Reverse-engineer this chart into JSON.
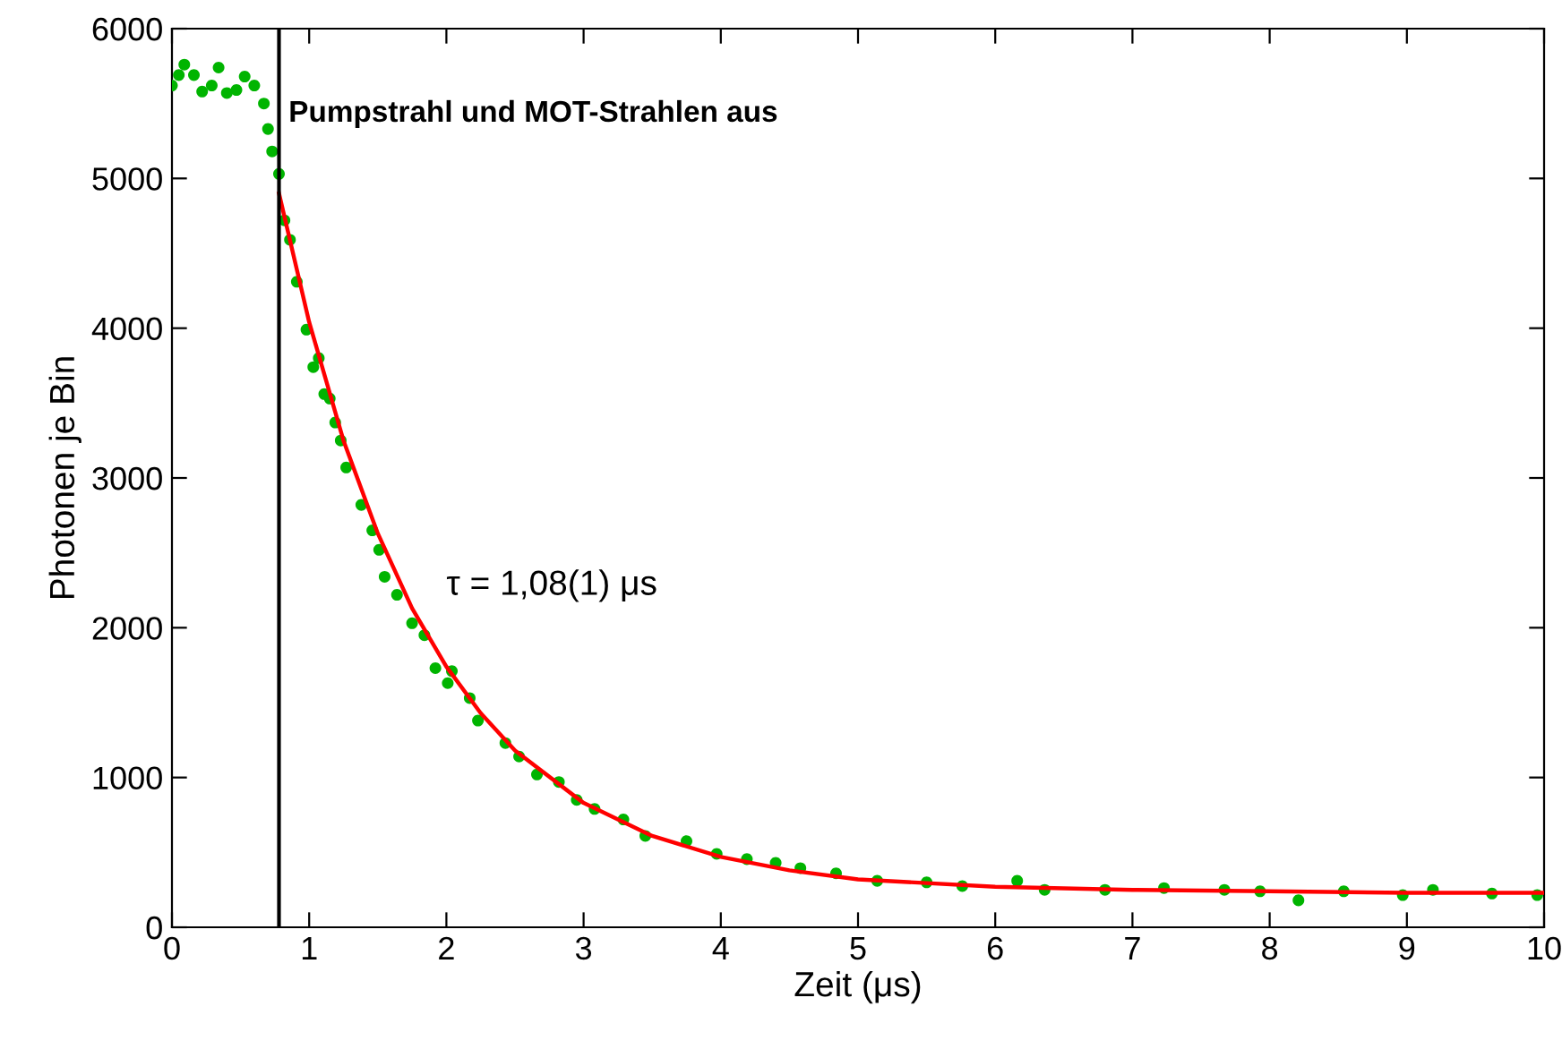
{
  "chart_data": {
    "type": "scatter",
    "xlabel": "Zeit (μs)",
    "ylabel": "Photonen je Bin",
    "xlim": [
      0,
      10
    ],
    "ylim": [
      0,
      6000
    ],
    "xticks": [
      0,
      1,
      2,
      3,
      4,
      5,
      6,
      7,
      8,
      9,
      10
    ],
    "yticks": [
      0,
      1000,
      2000,
      3000,
      4000,
      5000,
      6000
    ],
    "grid": false,
    "legend": false,
    "annotations": [
      "Pumpstrahl und MOT-Strahlen aus",
      "τ = 1,08(1) μs"
    ],
    "ref_lines": [
      {
        "axis": "x",
        "value": 0.78,
        "color": "#000000"
      }
    ],
    "series": [
      {
        "color": "#00b400",
        "marker": "circle",
        "x": [
          0,
          0.05,
          0.09,
          0.16,
          0.22,
          0.29,
          0.34,
          0.4,
          0.47,
          0.53,
          0.6,
          0.67,
          0.7,
          0.73,
          0.78,
          0.82,
          0.86,
          0.91,
          0.98,
          1.03,
          1.07,
          1.11,
          1.15,
          1.19,
          1.23,
          1.27,
          1.38,
          1.46,
          1.51,
          1.55,
          1.64,
          1.75,
          1.84,
          1.92,
          2.01,
          2.04,
          2.17,
          2.23,
          2.43,
          2.53,
          2.66,
          2.82,
          2.95,
          3.08,
          3.29,
          3.45,
          3.75,
          3.97,
          4.19,
          4.4,
          4.58,
          4.84,
          5.14,
          5.5,
          5.76,
          6.16,
          6.36,
          6.8,
          7.23,
          7.67,
          7.93,
          8.21,
          8.54,
          8.97,
          9.19,
          9.62,
          9.95
        ],
        "values": [
          5620,
          5690,
          5760,
          5690,
          5580,
          5620,
          5740,
          5570,
          5590,
          5680,
          5620,
          5500,
          5330,
          5180,
          5030,
          4720,
          4590,
          4310,
          3990,
          3740,
          3800,
          3560,
          3530,
          3370,
          3250,
          3070,
          2820,
          2650,
          2520,
          2340,
          2220,
          2030,
          1950,
          1730,
          1630,
          1710,
          1530,
          1380,
          1230,
          1140,
          1020,
          970,
          850,
          790,
          720,
          610,
          575,
          490,
          455,
          430,
          395,
          360,
          310,
          300,
          275,
          310,
          250,
          250,
          262,
          250,
          240,
          180,
          240,
          215,
          250,
          225,
          215
        ]
      },
      {
        "type": "line",
        "color": "#ff0000",
        "marker": "none",
        "line_style": "solid",
        "x": [
          0.78,
          1,
          1.25,
          1.5,
          1.75,
          2,
          2.25,
          2.5,
          3,
          3.5,
          4,
          4.5,
          5,
          6,
          7,
          8,
          9,
          10
        ],
        "values": [
          4900,
          4040,
          3250,
          2630,
          2130,
          1740,
          1430,
          1180,
          830,
          610,
          470,
          380,
          320,
          270,
          250,
          240,
          230,
          230
        ]
      }
    ]
  }
}
